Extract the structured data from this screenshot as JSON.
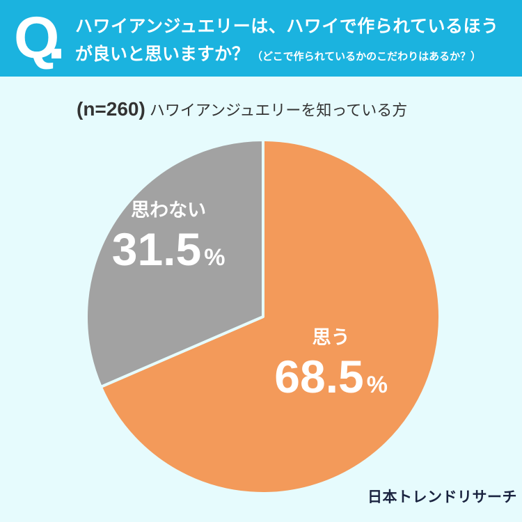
{
  "question": {
    "mark": "Q",
    "line1": "ハワイアンジュエリーは、ハワイで作られているほう",
    "line2": "が良いと思いますか？",
    "note": "（どこで作られているかのこだわりはあるか？）"
  },
  "subtitle": {
    "sample": "(n=260)",
    "audience": "ハワイアンジュエリーを知っている方"
  },
  "brand": "日本トレンドリサーチ",
  "colors": {
    "header": "#1bb3df",
    "background": "#e6fbfd",
    "yes": "#f39a5a",
    "no": "#a2a2a2",
    "separator": "#e6fbfd"
  },
  "chart_data": {
    "type": "pie",
    "slices": [
      {
        "label": "思う",
        "value": 68.5,
        "display": "68.5",
        "unit": "%",
        "color": "#f39a5a"
      },
      {
        "label": "思わない",
        "value": 31.5,
        "display": "31.5",
        "unit": "%",
        "color": "#a2a2a2"
      }
    ],
    "start": "12 o'clock",
    "direction": "clockwise"
  }
}
